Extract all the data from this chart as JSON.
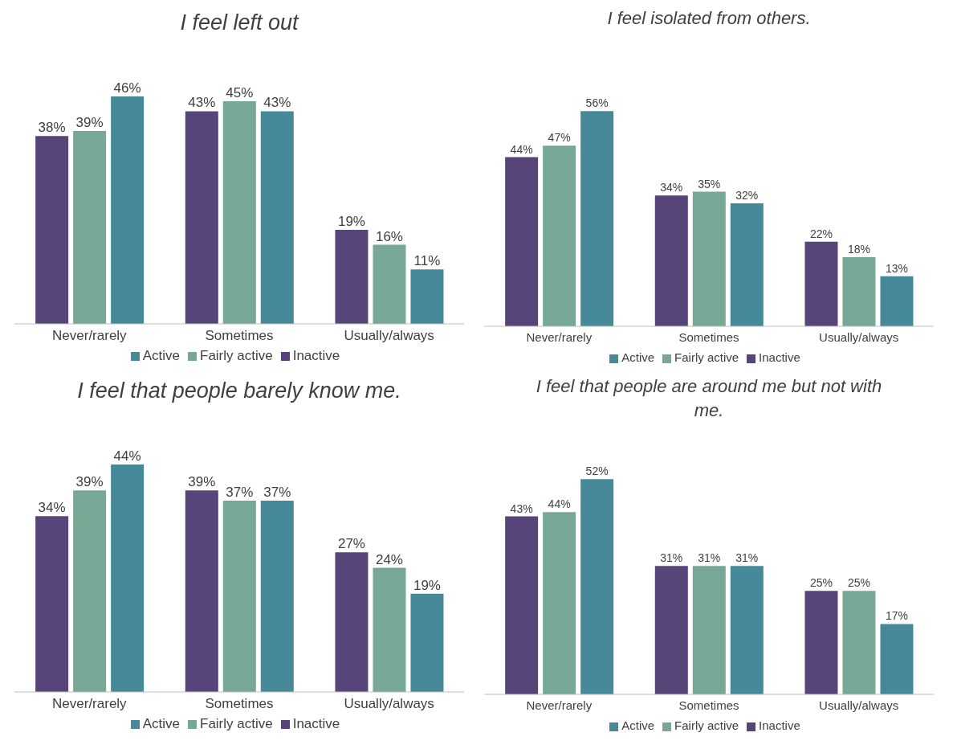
{
  "chart_data": [
    {
      "type": "bar",
      "title": "I feel left out",
      "categories": [
        "Never/rarely",
        "Sometimes",
        "Usually/always"
      ],
      "series": [
        {
          "name": "Inactive",
          "color": "#574478",
          "values": [
            38,
            43,
            19
          ],
          "value_labels": [
            "38%",
            "43%",
            "19%"
          ]
        },
        {
          "name": "Fairly active",
          "color": "#76a895",
          "values": [
            39,
            45,
            16
          ],
          "value_labels": [
            "39%",
            "45%",
            "16%"
          ]
        },
        {
          "name": "Active",
          "color": "#468a99",
          "values": [
            46,
            43,
            11
          ],
          "value_labels": [
            "46%",
            "43%",
            "11%"
          ]
        }
      ],
      "legend": "bottom",
      "grid": false
    },
    {
      "type": "bar",
      "title": "I feel isolated from others.",
      "categories": [
        "Never/rarely",
        "Sometimes",
        "Usually/always"
      ],
      "series": [
        {
          "name": "Inactive",
          "color": "#574478",
          "values": [
            44,
            34,
            22
          ],
          "value_labels": [
            "44%",
            "34%",
            "22%"
          ]
        },
        {
          "name": "Fairly active",
          "color": "#76a895",
          "values": [
            47,
            35,
            18
          ],
          "value_labels": [
            "47%",
            "35%",
            "18%"
          ]
        },
        {
          "name": "Active",
          "color": "#468a99",
          "values": [
            56,
            32,
            13
          ],
          "value_labels": [
            "56%",
            "32%",
            "13%"
          ]
        }
      ],
      "legend": "bottom",
      "grid": false
    },
    {
      "type": "bar",
      "title": "I feel that people barely know me.",
      "categories": [
        "Never/rarely",
        "Sometimes",
        "Usually/always"
      ],
      "series": [
        {
          "name": "Inactive",
          "color": "#574478",
          "values": [
            34,
            39,
            27
          ],
          "value_labels": [
            "34%",
            "39%",
            "27%"
          ]
        },
        {
          "name": "Fairly active",
          "color": "#76a895",
          "values": [
            39,
            37,
            24
          ],
          "value_labels": [
            "39%",
            "37%",
            "24%"
          ]
        },
        {
          "name": "Active",
          "color": "#468a99",
          "values": [
            44,
            37,
            19
          ],
          "value_labels": [
            "44%",
            "37%",
            "19%"
          ]
        }
      ],
      "legend": "bottom",
      "grid": false
    },
    {
      "type": "bar",
      "title": "I feel that people are around me but not with me.",
      "categories": [
        "Never/rarely",
        "Sometimes",
        "Usually/always"
      ],
      "series": [
        {
          "name": "Inactive",
          "color": "#574478",
          "values": [
            43,
            31,
            25
          ],
          "value_labels": [
            "43%",
            "31%",
            "25%"
          ]
        },
        {
          "name": "Fairly active",
          "color": "#76a895",
          "values": [
            44,
            31,
            25
          ],
          "value_labels": [
            "44%",
            "31%",
            "25%"
          ]
        },
        {
          "name": "Active",
          "color": "#468a99",
          "values": [
            52,
            31,
            17
          ],
          "value_labels": [
            "52%",
            "31%",
            "17%"
          ]
        }
      ],
      "legend": "bottom",
      "grid": false
    }
  ]
}
